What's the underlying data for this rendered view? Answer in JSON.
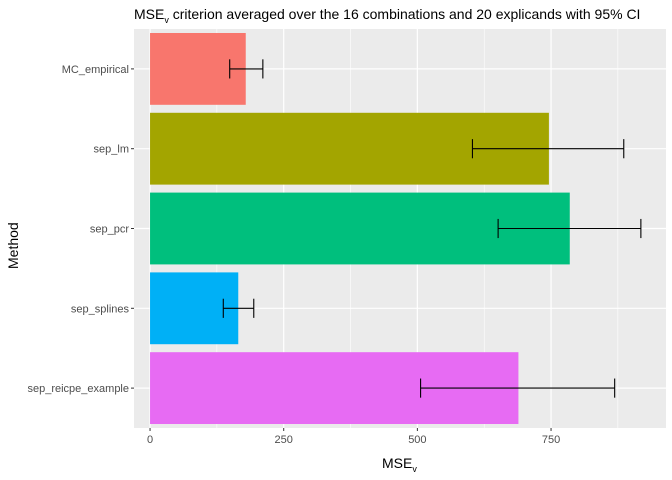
{
  "chart_data": {
    "type": "bar",
    "orientation": "horizontal",
    "title_main": "MSE",
    "title_sub": "v",
    "title_rest": " criterion averaged over the 16 combinations and 20 explicands with 95% CI",
    "xlabel_main": "MSE",
    "xlabel_sub": "v",
    "ylabel": "Method",
    "xlim": [
      -30,
      965
    ],
    "xticks": [
      0,
      250,
      500,
      750
    ],
    "xtick_labels": [
      "0",
      "250",
      "500",
      "750"
    ],
    "categories": [
      "MC_empirical",
      "sep_lm",
      "sep_pcr",
      "sep_splines",
      "sep_reicpe_example"
    ],
    "values": [
      179,
      746,
      785,
      165,
      689
    ],
    "ci_lower": [
      149,
      603,
      651,
      137,
      506
    ],
    "ci_upper": [
      211,
      886,
      918,
      194,
      869
    ],
    "colors": [
      "#F8766D",
      "#A3A500",
      "#00BF7D",
      "#00B0F6",
      "#E76BF3"
    ],
    "grid": true,
    "legend": "none"
  }
}
